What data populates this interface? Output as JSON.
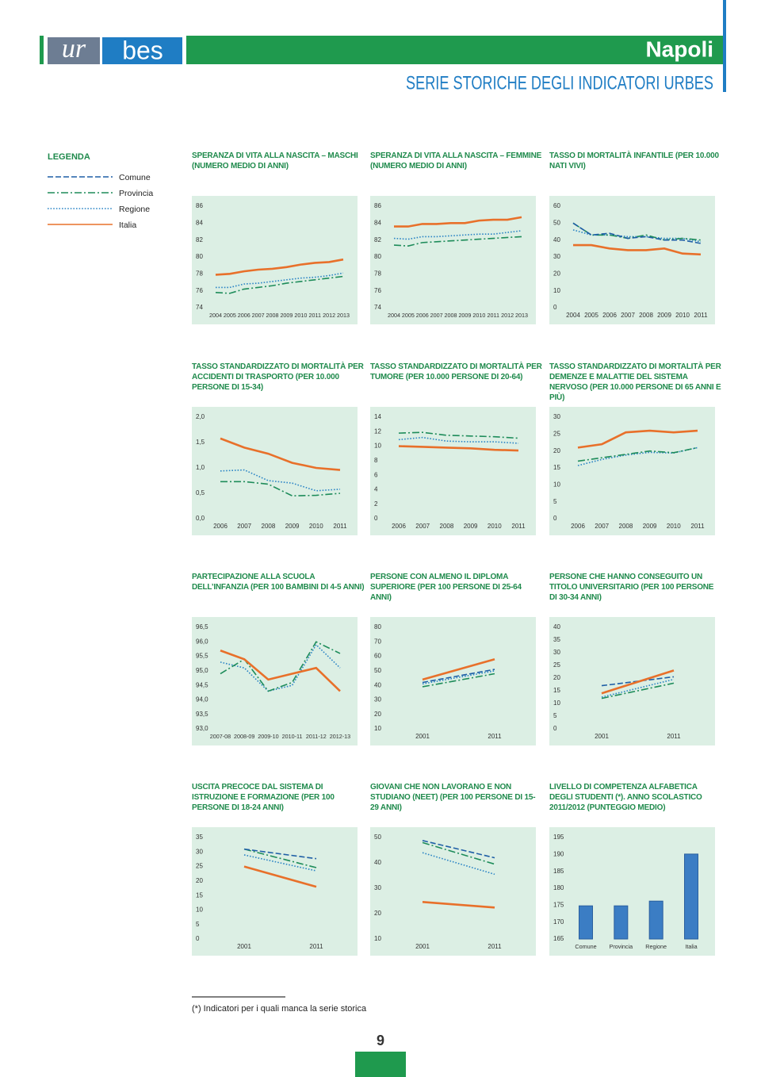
{
  "header": {
    "logo_left": "ur",
    "logo_right": "bes",
    "city": "Napoli",
    "title": "SERIE STORICHE DEGLI INDICATORI URBES"
  },
  "legend": {
    "title": "LEGENDA",
    "items": [
      {
        "name": "Comune",
        "color": "#1f5fa6",
        "style": "dashed"
      },
      {
        "name": "Provincia",
        "color": "#1e8c5a",
        "style": "dashdot"
      },
      {
        "name": "Regione",
        "color": "#2c85c5",
        "style": "dotted"
      },
      {
        "name": "Italia",
        "color": "#e8702a",
        "style": "solid"
      }
    ]
  },
  "chart_data": [
    {
      "type": "line",
      "title": "SPERANZA DI VITA ALLA NASCITA – MASCHI (NUMERO MEDIO DI ANNI)",
      "categories": [
        "2004",
        "2005",
        "2006",
        "2007",
        "2008",
        "2009",
        "2010",
        "2011",
        "2012",
        "2013"
      ],
      "series": [
        {
          "name": "Regione",
          "values": [
            76.4,
            76.4,
            76.8,
            76.9,
            77.1,
            77.3,
            77.5,
            77.6,
            77.8,
            78.1
          ]
        },
        {
          "name": "Provincia",
          "values": [
            75.8,
            75.7,
            76.2,
            76.4,
            76.6,
            76.9,
            77.1,
            77.3,
            77.5,
            77.7
          ]
        },
        {
          "name": "Italia",
          "values": [
            77.9,
            78.0,
            78.3,
            78.5,
            78.6,
            78.8,
            79.1,
            79.3,
            79.4,
            79.7
          ]
        }
      ],
      "ylim": [
        74,
        86
      ],
      "yticks": [
        74,
        76,
        78,
        80,
        82,
        84,
        86
      ]
    },
    {
      "type": "line",
      "title": "SPERANZA DI VITA ALLA NASCITA – FEMMINE (NUMERO MEDIO DI ANNI)",
      "categories": [
        "2004",
        "2005",
        "2006",
        "2007",
        "2008",
        "2009",
        "2010",
        "2011",
        "2012",
        "2013"
      ],
      "series": [
        {
          "name": "Regione",
          "values": [
            82.2,
            82.1,
            82.4,
            82.4,
            82.5,
            82.6,
            82.7,
            82.7,
            82.9,
            83.1
          ]
        },
        {
          "name": "Provincia",
          "values": [
            81.4,
            81.3,
            81.7,
            81.8,
            81.9,
            82.0,
            82.1,
            82.2,
            82.3,
            82.4
          ]
        },
        {
          "name": "Italia",
          "values": [
            83.6,
            83.6,
            83.9,
            83.9,
            84.0,
            84.0,
            84.3,
            84.4,
            84.4,
            84.7
          ]
        }
      ],
      "ylim": [
        74,
        86
      ],
      "yticks": [
        74,
        76,
        78,
        80,
        82,
        84,
        86
      ]
    },
    {
      "type": "line",
      "title": "TASSO DI MORTALITÀ INFANTILE (PER 10.000 NATI VIVI)",
      "categories": [
        "2004",
        "2005",
        "2006",
        "2007",
        "2008",
        "2009",
        "2010",
        "2011"
      ],
      "series": [
        {
          "name": "Regione",
          "values": [
            46,
            43,
            43,
            42,
            42,
            41,
            41,
            39
          ]
        },
        {
          "name": "Provincia",
          "values": [
            50,
            43,
            43,
            41,
            43,
            40,
            41,
            40
          ]
        },
        {
          "name": "Comune",
          "values": [
            50,
            43,
            44,
            41,
            42,
            40,
            40,
            38
          ]
        },
        {
          "name": "Italia",
          "values": [
            37,
            37,
            35,
            34,
            34,
            35,
            32,
            31.5
          ]
        }
      ],
      "ylim": [
        0,
        60
      ],
      "yticks": [
        0,
        10,
        20,
        30,
        40,
        50,
        60
      ]
    },
    {
      "type": "line",
      "title": "TASSO STANDARDIZZATO DI MORTALITÀ PER ACCIDENTI DI TRASPORTO (PER 10.000 PERSONE DI 15-34)",
      "categories": [
        "2006",
        "2007",
        "2008",
        "2009",
        "2010",
        "2011"
      ],
      "series": [
        {
          "name": "Regione",
          "values": [
            0.94,
            0.96,
            0.75,
            0.7,
            0.55,
            0.58
          ]
        },
        {
          "name": "Provincia",
          "values": [
            0.73,
            0.73,
            0.68,
            0.45,
            0.46,
            0.5
          ]
        },
        {
          "name": "Italia",
          "values": [
            1.58,
            1.4,
            1.28,
            1.1,
            1.0,
            0.96
          ]
        }
      ],
      "ylim": [
        0,
        2
      ],
      "yticks": [
        {
          "value": 0,
          "label": "0,0"
        },
        {
          "value": 0.5,
          "label": "0,5"
        },
        {
          "value": 1,
          "label": "1,0"
        },
        {
          "value": 1.5,
          "label": "1,5"
        },
        {
          "value": 2,
          "label": "2,0"
        }
      ]
    },
    {
      "type": "line",
      "title": "TASSO STANDARDIZZATO DI MORTALITÀ PER TUMORE (PER 10.000 PERSONE DI 20-64)",
      "categories": [
        "2006",
        "2007",
        "2008",
        "2009",
        "2010",
        "2011"
      ],
      "series": [
        {
          "name": "Regione",
          "values": [
            10.9,
            11.2,
            10.7,
            10.6,
            10.6,
            10.4
          ]
        },
        {
          "name": "Provincia",
          "values": [
            11.8,
            11.9,
            11.5,
            11.4,
            11.3,
            11.1
          ]
        },
        {
          "name": "Italia",
          "values": [
            10.0,
            9.9,
            9.8,
            9.7,
            9.5,
            9.4
          ]
        }
      ],
      "ylim": [
        0,
        14
      ],
      "yticks": [
        0,
        2,
        4,
        6,
        8,
        10,
        12,
        14
      ]
    },
    {
      "type": "line",
      "title": "TASSO STANDARDIZZATO DI MORTALITÀ PER DEMENZE E MALATTIE DEL SISTEMA NERVOSO (PER 10.000 PERSONE DI 65 ANNI E PIÙ)",
      "categories": [
        "2006",
        "2007",
        "2008",
        "2009",
        "2010",
        "2011"
      ],
      "series": [
        {
          "name": "Regione",
          "values": [
            15.7,
            17.5,
            18.8,
            19.6,
            19.4,
            21
          ]
        },
        {
          "name": "Provincia",
          "values": [
            17,
            18,
            19,
            20,
            19.5,
            21
          ]
        },
        {
          "name": "Italia",
          "values": [
            21,
            22,
            25.5,
            26,
            25.5,
            26
          ]
        }
      ],
      "ylim": [
        0,
        30
      ],
      "yticks": [
        0,
        5,
        10,
        15,
        20,
        25,
        30
      ]
    },
    {
      "type": "line",
      "title": "PARTECIPAZIONE ALLA SCUOLA DELL’INFANZIA (PER 100 BAMBINI DI 4-5 ANNI)",
      "categories": [
        "2007-08",
        "2008-09",
        "2009-10",
        "2010-11",
        "2011-12",
        "2012-13"
      ],
      "series": [
        {
          "name": "Regione",
          "values": [
            95.3,
            95.1,
            94.3,
            94.5,
            95.9,
            95.1
          ]
        },
        {
          "name": "Provincia",
          "values": [
            94.9,
            95.4,
            94.3,
            94.6,
            96.0,
            95.6
          ]
        },
        {
          "name": "Italia",
          "values": [
            95.7,
            95.4,
            94.7,
            94.9,
            95.1,
            94.3
          ]
        }
      ],
      "ylim": [
        93,
        96.5
      ],
      "yticks": [
        {
          "value": 93,
          "label": "93,0"
        },
        {
          "value": 93.5,
          "label": "93,5"
        },
        {
          "value": 94,
          "label": "94,0"
        },
        {
          "value": 94.5,
          "label": "94,5"
        },
        {
          "value": 95,
          "label": "95,0"
        },
        {
          "value": 95.5,
          "label": "95,5"
        },
        {
          "value": 96,
          "label": "96,0"
        },
        {
          "value": 96.5,
          "label": "96,5"
        }
      ]
    },
    {
      "type": "line",
      "title": "PERSONE CON ALMENO IL DIPLOMA SUPERIORE (PER 100 PERSONE DI 25-64 ANNI)",
      "categories": [
        "2001",
        "2011"
      ],
      "series": [
        {
          "name": "Regione",
          "values": [
            41,
            50
          ]
        },
        {
          "name": "Provincia",
          "values": [
            39,
            48
          ]
        },
        {
          "name": "Comune",
          "values": [
            42,
            51
          ]
        },
        {
          "name": "Italia",
          "values": [
            44,
            58
          ]
        }
      ],
      "ylim": [
        10,
        80
      ],
      "yticks": [
        10,
        20,
        30,
        40,
        50,
        60,
        70,
        80
      ]
    },
    {
      "type": "line",
      "title": "PERSONE CHE HANNO CONSEGUITO UN TITOLO UNIVERSITARIO (PER 100 PERSONE DI 30-34 ANNI)",
      "categories": [
        "2001",
        "2011"
      ],
      "series": [
        {
          "name": "Regione",
          "values": [
            12.5,
            19.5
          ]
        },
        {
          "name": "Provincia",
          "values": [
            12,
            18
          ]
        },
        {
          "name": "Comune",
          "values": [
            17,
            20.5
          ]
        },
        {
          "name": "Italia",
          "values": [
            14,
            23
          ]
        }
      ],
      "ylim": [
        0,
        40
      ],
      "yticks": [
        0,
        5,
        10,
        15,
        20,
        25,
        30,
        35,
        40
      ]
    },
    {
      "type": "line",
      "title": "USCITA PRECOCE DAL SISTEMA DI ISTRUZIONE E FORMAZIONE (PER 100 PERSONE DI 18-24 ANNI)",
      "categories": [
        "2001",
        "2011"
      ],
      "series": [
        {
          "name": "Regione",
          "values": [
            29,
            23.5
          ]
        },
        {
          "name": "Provincia",
          "values": [
            31,
            24.6
          ]
        },
        {
          "name": "Comune",
          "values": [
            31,
            27.7
          ]
        },
        {
          "name": "Italia",
          "values": [
            25,
            18
          ]
        }
      ],
      "ylim": [
        0,
        35
      ],
      "yticks": [
        0,
        5,
        10,
        15,
        20,
        25,
        30,
        35
      ]
    },
    {
      "type": "line",
      "title": "GIOVANI CHE NON LAVORANO E NON STUDIANO (NEET) (PER 100 PERSONE DI 15-29 ANNI)",
      "categories": [
        "2001",
        "2011"
      ],
      "series": [
        {
          "name": "Regione",
          "values": [
            44,
            35.5
          ]
        },
        {
          "name": "Provincia",
          "values": [
            48,
            39.5
          ]
        },
        {
          "name": "Comune",
          "values": [
            48.8,
            42
          ]
        },
        {
          "name": "Italia",
          "values": [
            24.6,
            22.4
          ]
        }
      ],
      "ylim": [
        10,
        50
      ],
      "yticks": [
        10,
        20,
        30,
        40,
        50
      ]
    },
    {
      "type": "bar",
      "title": "LIVELLO DI COMPETENZA ALFABETICA DEGLI STUDENTI (*). ANNO SCOLASTICO 2011/2012 (PUNTEGGIO MEDIO)",
      "categories": [
        "Comune",
        "Provincia",
        "Regione",
        "Italia"
      ],
      "values": [
        174.8,
        174.8,
        176.2,
        190.1
      ],
      "color": "#3b7dc4",
      "ylim": [
        165,
        195
      ],
      "yticks": [
        165,
        170,
        175,
        180,
        185,
        190,
        195
      ]
    }
  ],
  "footnote": "(*) Indicatori per i quali manca la serie storica",
  "page_number": 9
}
